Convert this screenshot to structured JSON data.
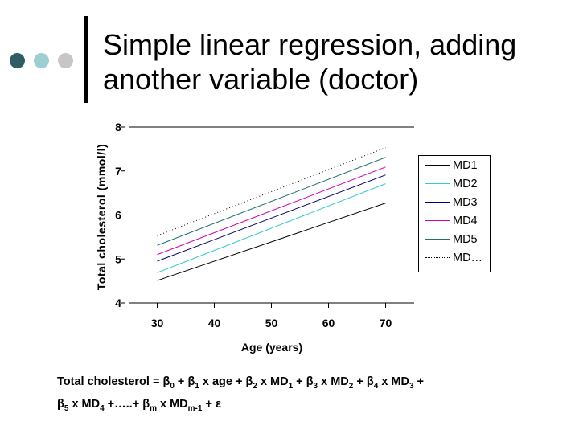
{
  "slide": {
    "title_line1": "Simple linear regression, adding",
    "title_line2": "another variable (doctor)",
    "dots": [
      {
        "color": "#2e5e63"
      },
      {
        "color": "#9ccfd2"
      },
      {
        "color": "#c6c6c6"
      }
    ]
  },
  "chart_data": {
    "type": "line",
    "xlabel": "Age (years)",
    "ylabel": "Total cholesterol (mmol/l)",
    "xlim": [
      25,
      75
    ],
    "ylim": [
      4,
      8
    ],
    "x_ticks": [
      "30",
      "40",
      "50",
      "60",
      "70"
    ],
    "y_ticks": [
      "8",
      "7",
      "6",
      "5",
      "4"
    ],
    "grid": "top border only",
    "legend": "right",
    "series": [
      {
        "name": "MD1",
        "color": "#000000",
        "dash": "none",
        "x": [
          30,
          70
        ],
        "y": [
          4.51,
          6.27
        ]
      },
      {
        "name": "MD2",
        "color": "#33cccc",
        "dash": "none",
        "x": [
          30,
          70
        ],
        "y": [
          4.69,
          6.71
        ]
      },
      {
        "name": "MD3",
        "color": "#000066",
        "dash": "none",
        "x": [
          30,
          70
        ],
        "y": [
          4.95,
          6.91
        ]
      },
      {
        "name": "MD4",
        "color": "#cc00aa",
        "dash": "none",
        "x": [
          30,
          70
        ],
        "y": [
          5.1,
          7.09
        ]
      },
      {
        "name": "MD5",
        "color": "#1f6f73",
        "dash": "none",
        "x": [
          30,
          70
        ],
        "y": [
          5.31,
          7.31
        ]
      },
      {
        "name": "MD…",
        "color": "#000000",
        "dash": "dot",
        "x": [
          30,
          70
        ],
        "y": [
          5.53,
          7.53
        ]
      }
    ]
  },
  "formula": {
    "lhs": "Total cholesterol = ",
    "b0": "β",
    "s0": "0",
    "t1": " + ",
    "b1": "β",
    "s1": "1",
    "t1b": " x age + ",
    "b2": "β",
    "s2": "2",
    "t2": " x MD",
    "m1": "1",
    "t2b": " + ",
    "b3": "β",
    "s3": "3",
    "t3": " x MD",
    "m2": "2",
    "t3b": " + ",
    "b4": "β",
    "s4": "4",
    "t4": " x MD",
    "m3": "3",
    "t4b": " +",
    "b5": "β",
    "s5": "5",
    "t5": " x MD",
    "m4": "4",
    "t5b": " +…..+ ",
    "bm": "β",
    "sm": "m",
    "t6": " x MD",
    "mm": "m-1",
    "t6b": " + ε"
  }
}
